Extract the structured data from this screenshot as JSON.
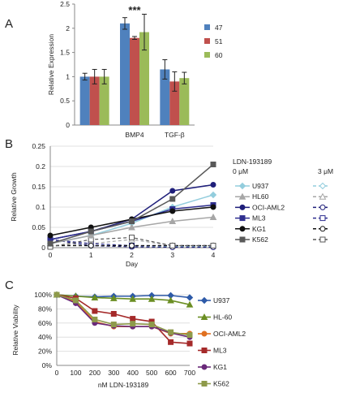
{
  "chart_data": [
    {
      "panel": "A",
      "type": "bar",
      "ylabel": "Relative Expression",
      "ylim": [
        0,
        2.5
      ],
      "yticks": [
        "0",
        "0.5",
        "1",
        "1.5",
        "2",
        "2.5"
      ],
      "categories": [
        "",
        "BMP4",
        "TGF-β"
      ],
      "series": [
        {
          "name": "47",
          "color": "#4f81bd",
          "values": [
            1.0,
            2.1,
            1.15
          ],
          "errors": [
            0.07,
            0.12,
            0.2
          ]
        },
        {
          "name": "51",
          "color": "#c0504d",
          "values": [
            1.0,
            1.8,
            0.9
          ],
          "errors": [
            0.15,
            0.03,
            0.2
          ]
        },
        {
          "name": "60",
          "color": "#9bbb59",
          "values": [
            1.0,
            1.92,
            0.97
          ],
          "errors": [
            0.15,
            0.37,
            0.12
          ]
        }
      ],
      "annotation": "***",
      "legend": "right"
    },
    {
      "panel": "B",
      "type": "line",
      "xlabel": "Day",
      "ylabel": "Relative Growth",
      "x": [
        0,
        1,
        2,
        3,
        4
      ],
      "ylim": [
        0,
        0.25
      ],
      "yticks": [
        "0",
        "0.05",
        "0.1",
        "0.15",
        "0.2",
        "0.25"
      ],
      "legend_title": "LDN-193189",
      "legend_col1": "0 μM",
      "legend_col2": "3 μM",
      "series": [
        {
          "name": "U937",
          "color": "#93cddd",
          "marker": "diamond",
          "values": [
            0.01,
            0.03,
            0.06,
            0.1,
            0.13
          ],
          "treated": [
            0.005,
            0.005,
            0.005,
            0.003,
            0.003
          ]
        },
        {
          "name": "HL60",
          "color": "#a6a6a6",
          "marker": "triangle",
          "values": [
            0.01,
            0.03,
            0.05,
            0.065,
            0.075
          ],
          "treated": [
            0.005,
            0.01,
            0.02,
            0.005,
            0.005
          ]
        },
        {
          "name": "OCI-AML2",
          "color": "#1f1f7a",
          "marker": "circle",
          "values": [
            0.02,
            0.04,
            0.07,
            0.14,
            0.155
          ],
          "treated": [
            0.02,
            0.005,
            0.002,
            0.001,
            0.001
          ]
        },
        {
          "name": "ML3",
          "color": "#2e2e8f",
          "marker": "square",
          "values": [
            0.02,
            0.04,
            0.065,
            0.095,
            0.105
          ],
          "treated": [
            0.02,
            0.01,
            0.005,
            0.005,
            0.005
          ]
        },
        {
          "name": "KG1",
          "color": "#111111",
          "marker": "circle",
          "values": [
            0.03,
            0.05,
            0.07,
            0.09,
            0.1
          ],
          "treated": [
            0.005,
            0.005,
            0.005,
            0.005,
            0.005
          ]
        },
        {
          "name": "K562",
          "color": "#595959",
          "marker": "square",
          "values": [
            0.01,
            0.04,
            0.065,
            0.12,
            0.205
          ],
          "treated": [
            0.002,
            0.02,
            0.025,
            0.005,
            0.005
          ]
        }
      ]
    },
    {
      "panel": "C",
      "type": "line",
      "xlabel": "nM LDN-193189",
      "ylabel": "Relative Viability",
      "x": [
        0,
        100,
        200,
        300,
        400,
        500,
        600,
        700
      ],
      "ylim": [
        0,
        100
      ],
      "yticks": [
        "0%",
        "20%",
        "40%",
        "60%",
        "80%",
        "100%"
      ],
      "series": [
        {
          "name": "U937",
          "color": "#2e5aa8",
          "marker": "diamond",
          "values": [
            100,
            98,
            97,
            98,
            98,
            99,
            99,
            96
          ]
        },
        {
          "name": "HL-60",
          "color": "#6b8e23",
          "marker": "triangle",
          "values": [
            100,
            98,
            96,
            95,
            94,
            94,
            92,
            86
          ]
        },
        {
          "name": "OCI-AML2",
          "color": "#e07020",
          "marker": "circle",
          "values": [
            100,
            90,
            62,
            55,
            55,
            55,
            45,
            45
          ]
        },
        {
          "name": "ML3",
          "color": "#a52a2a",
          "marker": "square",
          "values": [
            100,
            95,
            77,
            73,
            66,
            62,
            33,
            31
          ]
        },
        {
          "name": "KG1",
          "color": "#6a2a7a",
          "marker": "circle",
          "values": [
            100,
            88,
            60,
            56,
            55,
            55,
            46,
            40
          ]
        },
        {
          "name": "K562",
          "color": "#8e9a4a",
          "marker": "square",
          "values": [
            100,
            92,
            65,
            58,
            59,
            58,
            47,
            43
          ]
        }
      ]
    }
  ]
}
